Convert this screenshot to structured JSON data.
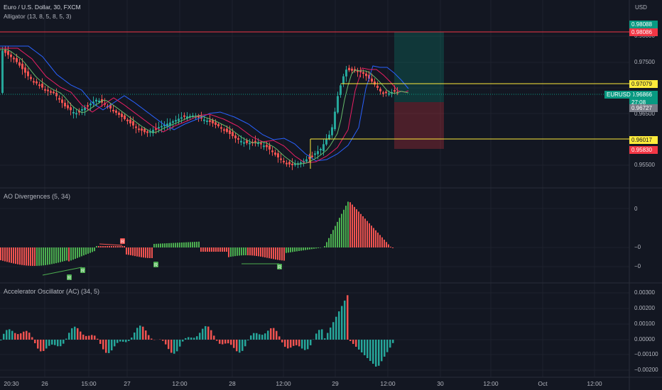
{
  "header": {
    "symbol_line": "Euro / U.S. Dollar, 30, FXCM",
    "indicator_line": "Alligator (13, 8, 5, 8, 5, 3)"
  },
  "currency": "USD",
  "price_axis": [
    "0.98000",
    "0.97500",
    "0.96500",
    "0.95500"
  ],
  "price_tags": [
    {
      "text": "0.98088",
      "bg": "#089981",
      "fg": "#ffffff"
    },
    {
      "text": "0.98086",
      "bg": "#f23645",
      "fg": "#ffffff"
    },
    {
      "text": "0.97079",
      "bg": "#ffeb3b",
      "fg": "#131722"
    },
    {
      "text": "0.96866",
      "bg": "#089981",
      "fg": "#ffffff"
    },
    {
      "text": "27:08",
      "bg": "#089981",
      "fg": "#ffffff"
    },
    {
      "text": "0.96727",
      "bg": "#787b86",
      "fg": "#ffffff"
    },
    {
      "text": "0.96017",
      "bg": "#ffeb3b",
      "fg": "#131722"
    },
    {
      "text": "0.95830",
      "bg": "#f23645",
      "fg": "#ffffff"
    }
  ],
  "symbol_badge": "EURUSD",
  "ao_pane": {
    "title": "AO Divergences (5, 34)",
    "axis": [
      "0",
      "−0",
      "−0"
    ],
    "markers": [
      "R",
      "R",
      "R",
      "R",
      "R"
    ]
  },
  "ac_pane": {
    "title": "Accelerator Oscillator (AC) (34, 5)",
    "axis": [
      "0.00300",
      "0.00200",
      "0.00100",
      "0.00000",
      "−0.00100",
      "−0.00200"
    ]
  },
  "time_axis": [
    "20:30",
    "26",
    "15:00",
    "27",
    "12:00",
    "28",
    "12:00",
    "29",
    "12:00",
    "30",
    "12:00",
    "Oct",
    "12:00"
  ],
  "colors": {
    "background": "#131722",
    "bull": "#26a69a",
    "bear": "#ef5350",
    "ao_up": "#4caf50",
    "ac_up": "#26a69a",
    "jaw": "#2962ff",
    "teeth": "#e91e63",
    "lips": "#66bb6a",
    "hline_red": "#f23645",
    "hline_yellow": "#ffeb3b"
  }
}
